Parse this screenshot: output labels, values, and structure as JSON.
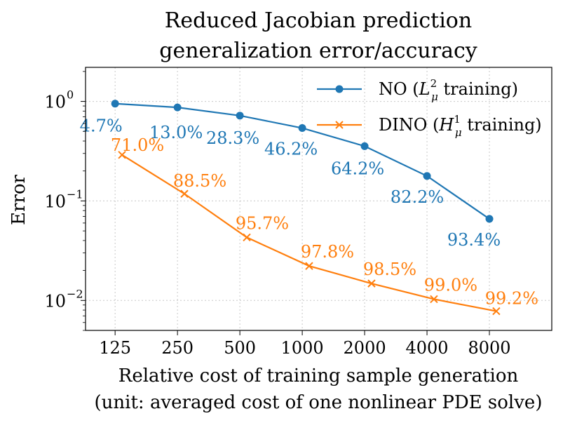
{
  "chart_data": {
    "type": "line",
    "title_lines": [
      "Reduced Jacobian prediction",
      "generalization error/accuracy"
    ],
    "xlabel_lines": [
      "Relative cost of training sample generation",
      "(unit: averaged cost of one nonlinear PDE solve)"
    ],
    "ylabel": "Error",
    "x_scale": "log2",
    "y_scale": "log10",
    "xlim": [
      90,
      16000
    ],
    "ylim": [
      0.005,
      2.2
    ],
    "x_ticks": [
      125,
      250,
      500,
      1000,
      2000,
      4000,
      8000
    ],
    "x_tick_labels": [
      "125",
      "250",
      "500",
      "1000",
      "2000",
      "4000",
      "8000"
    ],
    "y_ticks": [
      0.01,
      0.1,
      1
    ],
    "y_tick_labels": [
      {
        "base": "10",
        "exp": "−2"
      },
      {
        "base": "10",
        "exp": "−1"
      },
      {
        "base": "10",
        "exp": "0"
      }
    ],
    "grid": true,
    "legend_position": "top-right",
    "series": [
      {
        "name": "NO (L²μ training)",
        "legend": {
          "prefix": "NO (",
          "sym": "L",
          "sup": "2",
          "sub": "μ",
          "suffix": " training)"
        },
        "color": "#1f77b4",
        "marker": "circle",
        "x": [
          125,
          250,
          500,
          1000,
          2000,
          4000,
          8000
        ],
        "values": [
          0.95,
          0.87,
          0.72,
          0.54,
          0.355,
          0.178,
          0.066
        ],
        "labels": [
          "4.7%",
          "13.0%",
          "28.3%",
          "46.2%",
          "64.2%",
          "82.2%",
          "93.4%"
        ]
      },
      {
        "name": "DINO (H¹μ training)",
        "legend": {
          "prefix": "DINO (",
          "sym": "H",
          "sup": "1",
          "sub": "μ",
          "suffix": " training)"
        },
        "color": "#ff7f0e",
        "marker": "x",
        "x": [
          135,
          270,
          540,
          1080,
          2160,
          4320,
          8640
        ],
        "values": [
          0.29,
          0.118,
          0.043,
          0.0222,
          0.0148,
          0.0103,
          0.0078
        ],
        "labels": [
          "71.0%",
          "88.5%",
          "95.7%",
          "97.8%",
          "98.5%",
          "99.0%",
          "99.2%"
        ]
      }
    ]
  }
}
